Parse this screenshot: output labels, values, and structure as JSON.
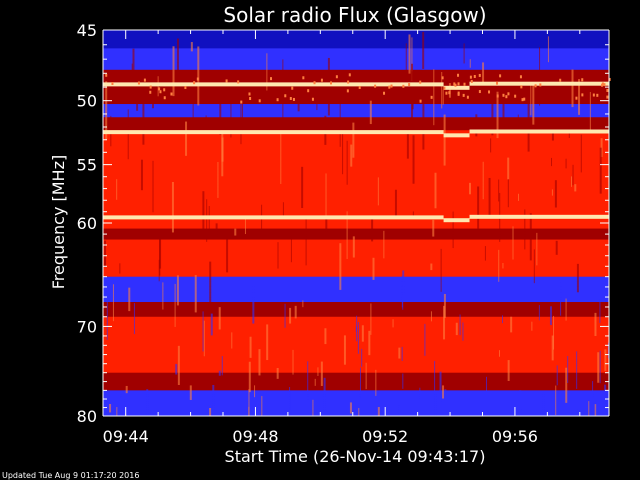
{
  "chart_data": {
    "type": "heatmap",
    "title": "Solar radio Flux (Glasgow)",
    "xlabel": "Start Time (26-Nov-14 09:43:17)",
    "ylabel": "Frequency [MHz]",
    "footer": "Updated Tue Aug  9 01:17:20 2016",
    "x_range_minutes": [
      43.3,
      58.9
    ],
    "y_range_mhz": [
      45,
      80
    ],
    "y_scale": "log",
    "x_ticks": [
      {
        "minute": 44,
        "label": "09:44"
      },
      {
        "minute": 48,
        "label": "09:48"
      },
      {
        "minute": 52,
        "label": "09:52"
      },
      {
        "minute": 56,
        "label": "09:56"
      }
    ],
    "y_ticks": [
      {
        "mhz": 45,
        "label": "45"
      },
      {
        "mhz": 50,
        "label": "50"
      },
      {
        "mhz": 55,
        "label": "55"
      },
      {
        "mhz": 60,
        "label": "60"
      },
      {
        "mhz": 70,
        "label": "70"
      },
      {
        "mhz": 80,
        "label": "80"
      }
    ],
    "colormap": [
      "#000000",
      "#1010c0",
      "#3030ff",
      "#a00000",
      "#ff2000",
      "#ff8040",
      "#ffe8b0"
    ],
    "bright_lines_mhz": [
      48.8,
      52.4,
      59.5
    ],
    "step_shift_minutes": [
      53.8,
      54.6
    ],
    "grid": false,
    "legend": "none"
  }
}
